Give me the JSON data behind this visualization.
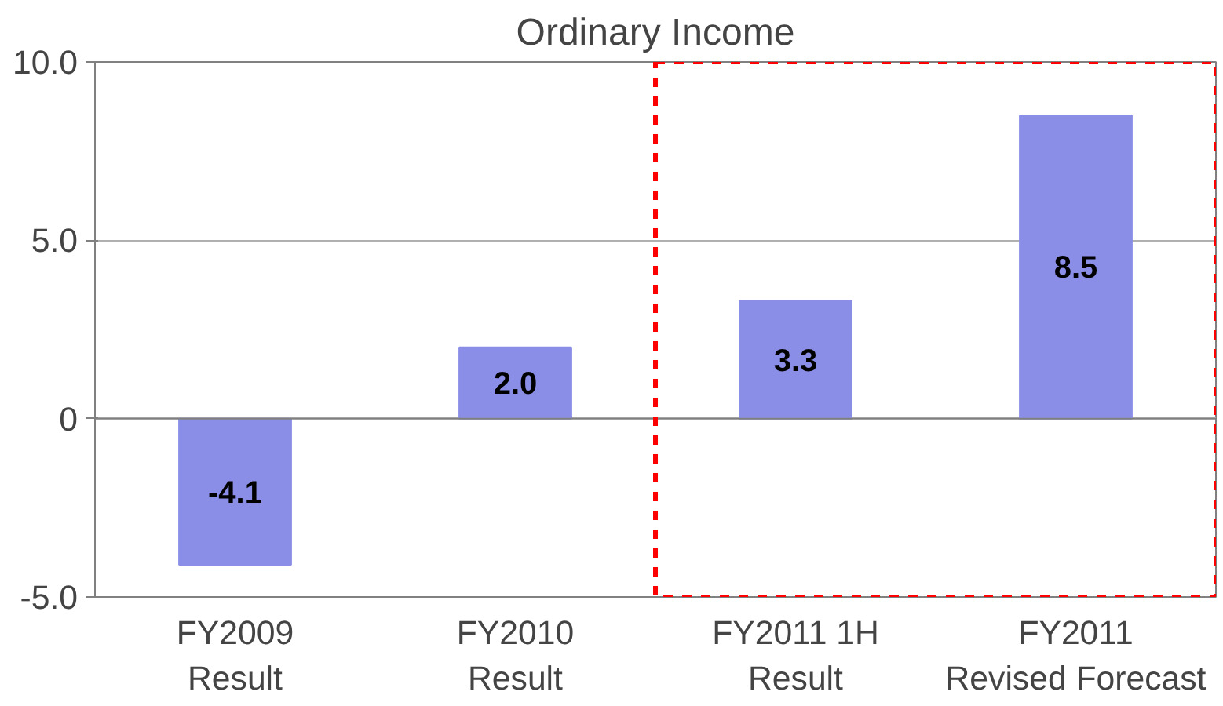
{
  "chart_data": {
    "type": "bar",
    "title": "Ordinary Income",
    "categories": [
      "FY2009\nResult",
      "FY2010\nResult",
      "FY2011 1H\nResult",
      "FY2011\nRevised Forecast"
    ],
    "values": [
      -4.1,
      2.0,
      3.3,
      8.5
    ],
    "color": "#8a8ee6",
    "value_labels": [
      "-4.1",
      "2.0",
      "3.3",
      "8.5"
    ],
    "ylim": [
      -5,
      10
    ],
    "yticks": [
      {
        "value": -5,
        "label": "-5.0"
      },
      0,
      {
        "value": 5,
        "label": "5.0"
      },
      {
        "value": 10,
        "label": "10.0"
      }
    ],
    "grid": "y"
  }
}
